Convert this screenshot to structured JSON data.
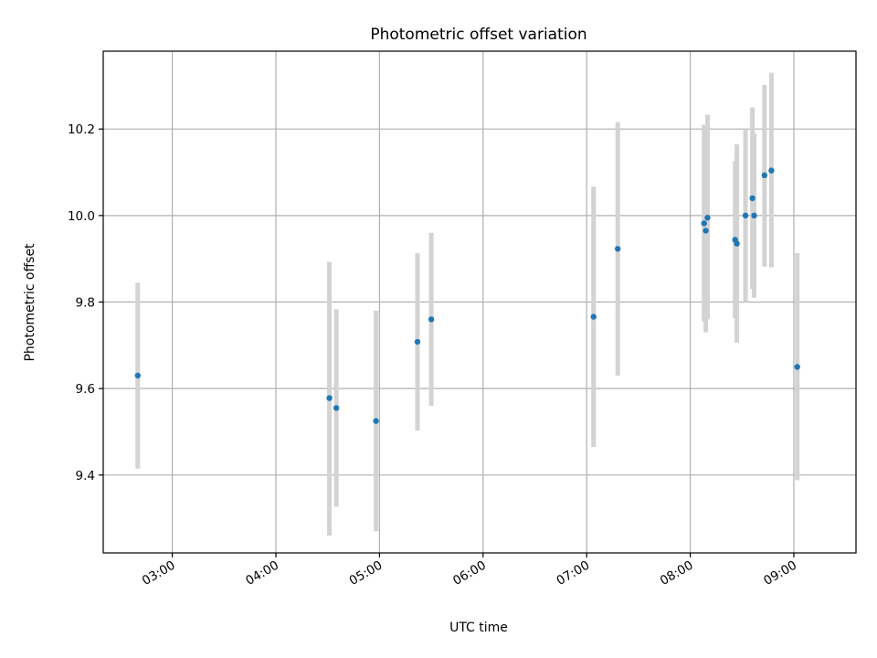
{
  "chart_data": {
    "type": "scatter",
    "title": "Photometric offset variation",
    "xlabel": "UTC time",
    "ylabel": "Photometric offset",
    "x_axis_type": "time",
    "xlim": [
      "02:20",
      "09:36"
    ],
    "ylim": [
      9.22,
      10.38
    ],
    "grid": true,
    "x_ticks": [
      "03:00",
      "04:00",
      "05:00",
      "06:00",
      "07:00",
      "08:00",
      "09:00"
    ],
    "y_ticks": [
      9.4,
      9.6,
      9.8,
      10.0,
      10.2
    ],
    "y_tick_labels": [
      "9.4",
      "9.6",
      "9.8",
      "10.0",
      "10.2"
    ],
    "colors": {
      "point": "#1f77b4",
      "errorbar": "#d3d3d3",
      "grid": "#b0b0b0"
    },
    "points": [
      {
        "x": "02:40",
        "y": 9.63,
        "yerr_low": 9.415,
        "yerr_high": 9.845
      },
      {
        "x": "04:31",
        "y": 9.578,
        "yerr_low": 9.26,
        "yerr_high": 9.893
      },
      {
        "x": "04:35",
        "y": 9.555,
        "yerr_low": 9.327,
        "yerr_high": 9.783
      },
      {
        "x": "04:58",
        "y": 9.525,
        "yerr_low": 9.27,
        "yerr_high": 9.78
      },
      {
        "x": "05:22",
        "y": 9.708,
        "yerr_low": 9.503,
        "yerr_high": 9.913
      },
      {
        "x": "05:30",
        "y": 9.76,
        "yerr_low": 9.56,
        "yerr_high": 9.96
      },
      {
        "x": "07:04",
        "y": 9.766,
        "yerr_low": 9.465,
        "yerr_high": 10.067
      },
      {
        "x": "07:18",
        "y": 9.923,
        "yerr_low": 9.63,
        "yerr_high": 10.216
      },
      {
        "x": "08:08",
        "y": 9.982,
        "yerr_low": 9.755,
        "yerr_high": 10.21
      },
      {
        "x": "08:09",
        "y": 9.965,
        "yerr_low": 9.73,
        "yerr_high": 10.2
      },
      {
        "x": "08:10",
        "y": 9.995,
        "yerr_low": 9.76,
        "yerr_high": 10.233
      },
      {
        "x": "08:26",
        "y": 9.944,
        "yerr_low": 9.763,
        "yerr_high": 10.126
      },
      {
        "x": "08:27",
        "y": 9.935,
        "yerr_low": 9.706,
        "yerr_high": 10.165
      },
      {
        "x": "08:32",
        "y": 10.0,
        "yerr_low": 9.8,
        "yerr_high": 10.198
      },
      {
        "x": "08:36",
        "y": 10.04,
        "yerr_low": 9.83,
        "yerr_high": 10.25
      },
      {
        "x": "08:37",
        "y": 10.0,
        "yerr_low": 9.81,
        "yerr_high": 10.19
      },
      {
        "x": "08:43",
        "y": 10.093,
        "yerr_low": 9.882,
        "yerr_high": 10.302
      },
      {
        "x": "08:47",
        "y": 10.104,
        "yerr_low": 9.88,
        "yerr_high": 10.33
      },
      {
        "x": "09:02",
        "y": 9.65,
        "yerr_low": 9.388,
        "yerr_high": 9.913
      }
    ]
  }
}
